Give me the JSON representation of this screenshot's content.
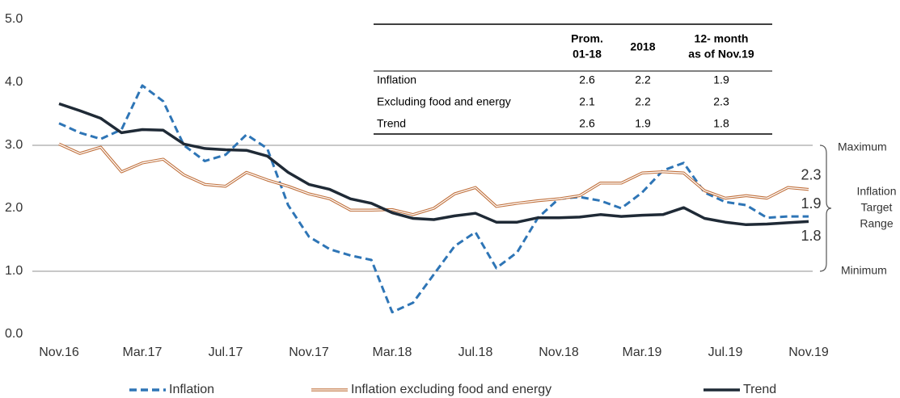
{
  "chart_data": {
    "type": "line",
    "categories": [
      "Nov.16",
      null,
      null,
      null,
      "Mar.17",
      null,
      null,
      null,
      "Jul.17",
      null,
      null,
      null,
      "Nov.17",
      null,
      null,
      null,
      "Mar.18",
      null,
      null,
      null,
      "Jul.18",
      null,
      null,
      null,
      "Nov.18",
      null,
      null,
      null,
      "Mar.19",
      null,
      null,
      null,
      "Jul.19",
      null,
      null,
      null,
      "Nov.19"
    ],
    "series": [
      {
        "name": "Inflation",
        "color": "#2e75b6",
        "dashed": true,
        "values": [
          3.35,
          3.2,
          3.1,
          3.25,
          3.95,
          3.7,
          3.0,
          2.75,
          2.85,
          3.17,
          2.95,
          2.05,
          1.55,
          1.35,
          1.25,
          1.18,
          0.35,
          0.5,
          0.95,
          1.4,
          1.62,
          1.05,
          1.3,
          1.85,
          2.15,
          2.18,
          2.12,
          2.0,
          2.25,
          2.6,
          2.72,
          2.25,
          2.1,
          2.05,
          1.85,
          1.87,
          1.87
        ],
        "value_labels": [
          null,
          null,
          null,
          null,
          null,
          null,
          null,
          null,
          null,
          null,
          null,
          null,
          null,
          null,
          null,
          null,
          null,
          null,
          null,
          null,
          null,
          null,
          null,
          null,
          null,
          null,
          null,
          null,
          null,
          null,
          null,
          null,
          null,
          null,
          null,
          null,
          "1.9"
        ]
      },
      {
        "name": "Inflation excluding food and energy",
        "color": "#c0703c",
        "outlined": true,
        "values": [
          3.02,
          2.87,
          2.97,
          2.58,
          2.72,
          2.78,
          2.53,
          2.38,
          2.35,
          2.57,
          2.45,
          2.35,
          2.23,
          2.15,
          1.97,
          1.97,
          1.98,
          1.9,
          2.0,
          2.23,
          2.33,
          2.03,
          2.08,
          2.12,
          2.15,
          2.2,
          2.4,
          2.4,
          2.56,
          2.58,
          2.56,
          2.28,
          2.16,
          2.2,
          2.16,
          2.33,
          2.3
        ],
        "value_labels": [
          null,
          null,
          null,
          null,
          null,
          null,
          null,
          null,
          null,
          null,
          null,
          null,
          null,
          null,
          null,
          null,
          null,
          null,
          null,
          null,
          null,
          null,
          null,
          null,
          null,
          null,
          null,
          null,
          null,
          null,
          null,
          null,
          null,
          null,
          null,
          null,
          "2.3"
        ]
      },
      {
        "name": "Trend",
        "color": "#1f2a36",
        "values": [
          3.66,
          3.55,
          3.43,
          3.2,
          3.25,
          3.24,
          3.02,
          2.95,
          2.93,
          2.92,
          2.83,
          2.57,
          2.38,
          2.3,
          2.15,
          2.08,
          1.93,
          1.84,
          1.82,
          1.88,
          1.92,
          1.78,
          1.78,
          1.85,
          1.85,
          1.86,
          1.9,
          1.87,
          1.89,
          1.9,
          2.01,
          1.84,
          1.78,
          1.74,
          1.75,
          1.77,
          1.79
        ],
        "value_labels": [
          null,
          null,
          null,
          null,
          null,
          null,
          null,
          null,
          null,
          null,
          null,
          null,
          null,
          null,
          null,
          null,
          null,
          null,
          null,
          null,
          null,
          null,
          null,
          null,
          null,
          null,
          null,
          null,
          null,
          null,
          null,
          null,
          null,
          null,
          null,
          null,
          "1.8"
        ]
      }
    ],
    "ylim": [
      0,
      5
    ],
    "yticks": [
      {
        "value": 0,
        "label": "0.0"
      },
      {
        "value": 1,
        "label": "1.0"
      },
      {
        "value": 2,
        "label": "2.0"
      },
      {
        "value": 3,
        "label": "3.0"
      },
      {
        "value": 4,
        "label": "4.0"
      },
      {
        "value": 5,
        "label": "5.0"
      }
    ],
    "target_range": {
      "min": 1,
      "max": 3,
      "min_label": "Minimum",
      "max_label": "Maximum",
      "label": [
        "Inflation",
        "Target",
        "Range"
      ]
    },
    "legend": "bottom",
    "table": {
      "columns": [
        [
          "Prom.",
          "01-18"
        ],
        [
          "2018"
        ],
        [
          "12- month",
          "as of Nov.19"
        ]
      ],
      "rows": [
        [
          "Inflation",
          2.6,
          2.2,
          1.9
        ],
        [
          "Excluding food and energy",
          2.1,
          2.2,
          2.3
        ],
        [
          "Trend",
          2.6,
          1.9,
          1.8
        ]
      ]
    }
  }
}
